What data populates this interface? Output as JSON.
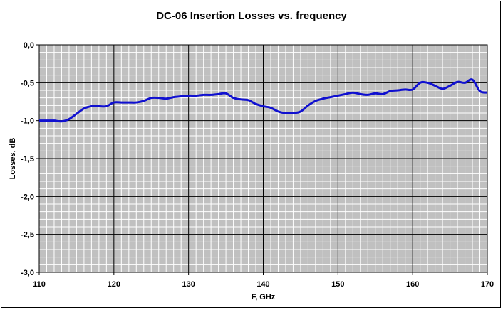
{
  "chart_data": {
    "type": "line",
    "title": "DC-06 Insertion Losses vs. frequency",
    "xlabel": "F, GHz",
    "ylabel": "Losses, dB",
    "xlim": [
      110,
      170
    ],
    "ylim": [
      -3.0,
      0.0
    ],
    "x_ticks": [
      "110",
      "120",
      "130",
      "140",
      "150",
      "160",
      "170"
    ],
    "y_ticks": [
      "0,0",
      "-0,5",
      "-1,0",
      "-1,5",
      "-2,0",
      "-2,5",
      "-3,0"
    ],
    "grid": true,
    "plot_background": "#c0c0c0",
    "line_color": "#1010d0",
    "series": [
      {
        "x": [
          110,
          111,
          112,
          113,
          114,
          115,
          116,
          117,
          118,
          119,
          120,
          121,
          122,
          123,
          124,
          125,
          126,
          127,
          128,
          129,
          130,
          131,
          132,
          133,
          134,
          135,
          136,
          137,
          138,
          139,
          140,
          141,
          142,
          143,
          144,
          145,
          146,
          147,
          148,
          149,
          150,
          151,
          152,
          153,
          154,
          155,
          156,
          157,
          158,
          159,
          160,
          161,
          162,
          163,
          164,
          165,
          166,
          167,
          168,
          169,
          170
        ],
        "y": [
          -1.0,
          -1.0,
          -1.0,
          -1.01,
          -0.98,
          -0.91,
          -0.84,
          -0.81,
          -0.81,
          -0.81,
          -0.76,
          -0.76,
          -0.76,
          -0.76,
          -0.74,
          -0.7,
          -0.7,
          -0.71,
          -0.69,
          -0.68,
          -0.67,
          -0.67,
          -0.66,
          -0.66,
          -0.65,
          -0.64,
          -0.7,
          -0.72,
          -0.73,
          -0.78,
          -0.81,
          -0.83,
          -0.88,
          -0.9,
          -0.9,
          -0.88,
          -0.8,
          -0.74,
          -0.71,
          -0.69,
          -0.67,
          -0.65,
          -0.63,
          -0.65,
          -0.66,
          -0.64,
          -0.65,
          -0.61,
          -0.6,
          -0.59,
          -0.59,
          -0.5,
          -0.5,
          -0.54,
          -0.58,
          -0.54,
          -0.49,
          -0.5,
          -0.46,
          -0.61,
          -0.63
        ]
      }
    ]
  }
}
